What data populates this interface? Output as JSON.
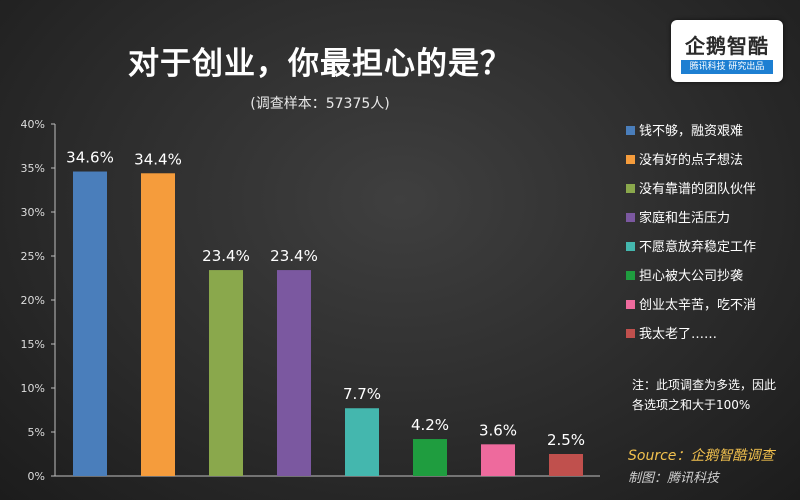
{
  "logo": {
    "text": "企鹅智酷",
    "band": "腾讯科技  研究出品"
  },
  "note": [
    "注：此项调查为多选，因此",
    "各选项之和大于100%"
  ],
  "source": "Source：企鹅智酷调查",
  "maker": "制图：腾讯科技",
  "chart_data": {
    "type": "bar",
    "title": "对于创业，你最担心的是？",
    "subtitle": "(调查样本：57375人)",
    "categories": [
      "钱不够，融资艰难",
      "没有好的点子想法",
      "没有靠谱的团队伙伴",
      "家庭和生活压力",
      "不愿意放弃稳定工作",
      "担心被大公司抄袭",
      "创业太辛苦，吃不消",
      "我太老了……"
    ],
    "values": [
      34.6,
      34.4,
      23.4,
      23.4,
      7.7,
      4.2,
      3.6,
      2.5
    ],
    "data_labels": [
      "34.6%",
      "34.4%",
      "23.4%",
      "23.4%",
      "7.7%",
      "4.2%",
      "3.6%",
      "2.5%"
    ],
    "colors": [
      "#4a7ebb",
      "#f59c3c",
      "#8aa84c",
      "#7b58a0",
      "#44b7ae",
      "#1f9d3f",
      "#ee6a9d",
      "#c0504d"
    ],
    "yticks": [
      "0%",
      "5%",
      "10%",
      "15%",
      "20%",
      "25%",
      "30%",
      "35%",
      "40%"
    ],
    "ylim": [
      0,
      40
    ],
    "xlabel": "",
    "ylabel": "",
    "grid": false,
    "legend": "right"
  }
}
